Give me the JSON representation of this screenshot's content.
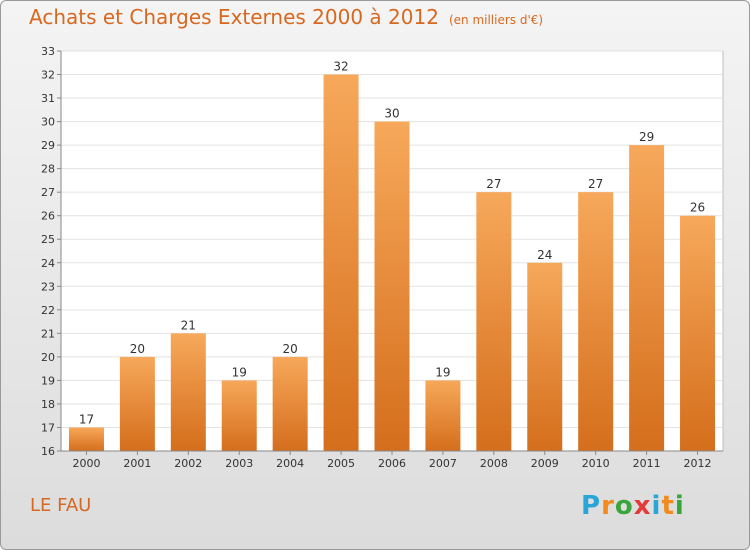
{
  "title": "Achats et Charges Externes 2000 à 2012",
  "unit": "(en milliers d'€)",
  "city": "LE FAU",
  "logo": {
    "letters": [
      "P",
      "r",
      "o",
      "x",
      "i",
      "t",
      "i"
    ],
    "colors": [
      "#2aa5d8",
      "#f28a1d",
      "#3aa53a",
      "#e43a3a",
      "#2aa5d8",
      "#f28a1d",
      "#3aa53a"
    ]
  },
  "colors": {
    "bar_light": "#f7a85a",
    "bar_dark": "#d46e1c",
    "accent": "#d8681f"
  },
  "chart_data": {
    "type": "bar",
    "categories": [
      "2000",
      "2001",
      "2002",
      "2003",
      "2004",
      "2005",
      "2006",
      "2007",
      "2008",
      "2009",
      "2010",
      "2011",
      "2012"
    ],
    "values": [
      17,
      20,
      21,
      19,
      20,
      32,
      30,
      19,
      27,
      24,
      27,
      29,
      26
    ],
    "ylim": [
      16,
      33
    ],
    "yticks": [
      16,
      17,
      18,
      19,
      20,
      21,
      22,
      23,
      24,
      25,
      26,
      27,
      28,
      29,
      30,
      31,
      32,
      33
    ],
    "grid": true
  }
}
